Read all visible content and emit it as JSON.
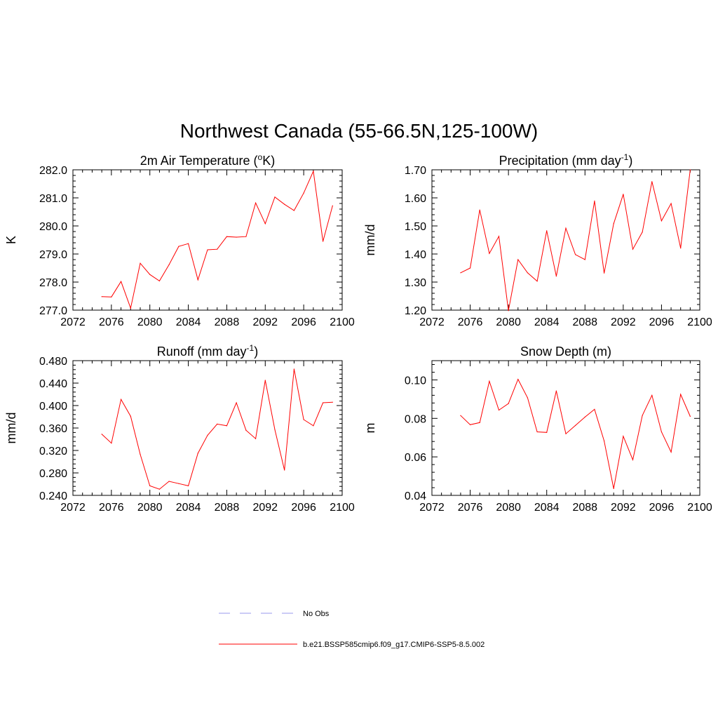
{
  "figure": {
    "title": "Northwest Canada (55-66.5N,125-100W)"
  },
  "legend": [
    {
      "label": "No Obs",
      "color": "#9999ee",
      "dash": "dashed"
    },
    {
      "label": "b.e21.BSSP585cmip6.f09_g17.CMIP6-SSP5-8.5.002",
      "color": "#ff0000",
      "dash": "solid"
    }
  ],
  "chart_data": [
    {
      "type": "line",
      "title": "2m Air Temperature (°K)",
      "title_parts": {
        "main": "2m Air Temperature (",
        "sup": "o",
        "end": "K)"
      },
      "ylabel": "K",
      "xlim": [
        2072,
        2100
      ],
      "ylim": [
        277.0,
        282.0
      ],
      "x_ticks": [
        "2072",
        "2076",
        "2080",
        "2084",
        "2088",
        "2092",
        "2096",
        "2100"
      ],
      "y_ticks": [
        "277.0",
        "278.0",
        "279.0",
        "280.0",
        "281.0",
        "282.0"
      ],
      "color": "#ff0000",
      "x": [
        2075,
        2076,
        2077,
        2078,
        2079,
        2080,
        2081,
        2082,
        2083,
        2084,
        2085,
        2086,
        2087,
        2088,
        2089,
        2090,
        2091,
        2092,
        2093,
        2094,
        2095,
        2096,
        2097,
        2098,
        2099
      ],
      "y": [
        277.48,
        277.47,
        278.02,
        277.07,
        278.67,
        278.27,
        278.04,
        278.62,
        279.27,
        279.37,
        278.08,
        279.15,
        279.17,
        279.62,
        279.6,
        279.62,
        280.82,
        280.08,
        281.03,
        280.77,
        280.55,
        281.17,
        281.95,
        279.45,
        280.72
      ]
    },
    {
      "type": "line",
      "title": "Precipitation (mm day-1)",
      "title_parts": {
        "main": "Precipitation (mm day",
        "sup": "-1",
        "end": ")"
      },
      "ylabel": "mm/d",
      "xlim": [
        2072,
        2100
      ],
      "ylim": [
        1.2,
        1.7
      ],
      "x_ticks": [
        "2072",
        "2076",
        "2080",
        "2084",
        "2088",
        "2092",
        "2096",
        "2100"
      ],
      "y_ticks": [
        "1.20",
        "1.30",
        "1.40",
        "1.50",
        "1.60",
        "1.70"
      ],
      "color": "#ff0000",
      "x": [
        2075,
        2076,
        2077,
        2078,
        2079,
        2080,
        2081,
        2082,
        2083,
        2084,
        2085,
        2086,
        2087,
        2088,
        2089,
        2090,
        2091,
        2092,
        2093,
        2094,
        2095,
        2096,
        2097,
        2098,
        2099
      ],
      "y": [
        1.333,
        1.35,
        1.557,
        1.402,
        1.463,
        1.198,
        1.38,
        1.333,
        1.303,
        1.483,
        1.321,
        1.492,
        1.398,
        1.38,
        1.589,
        1.332,
        1.508,
        1.613,
        1.417,
        1.478,
        1.658,
        1.518,
        1.58,
        1.421,
        1.7
      ]
    },
    {
      "type": "line",
      "title": "Runoff (mm day-1)",
      "title_parts": {
        "main": "Runoff (mm day",
        "sup": "-1",
        "end": ")"
      },
      "ylabel": "mm/d",
      "xlim": [
        2072,
        2100
      ],
      "ylim": [
        0.24,
        0.48
      ],
      "x_ticks": [
        "2072",
        "2076",
        "2080",
        "2084",
        "2088",
        "2092",
        "2096",
        "2100"
      ],
      "y_ticks": [
        "0.240",
        "0.280",
        "0.320",
        "0.360",
        "0.400",
        "0.440",
        "0.480"
      ],
      "color": "#ff0000",
      "x": [
        2075,
        2076,
        2077,
        2078,
        2079,
        2080,
        2081,
        2082,
        2083,
        2084,
        2085,
        2086,
        2087,
        2088,
        2089,
        2090,
        2091,
        2092,
        2093,
        2094,
        2095,
        2096,
        2097,
        2098,
        2099
      ],
      "y": [
        0.349,
        0.333,
        0.411,
        0.381,
        0.313,
        0.257,
        0.251,
        0.265,
        0.261,
        0.257,
        0.315,
        0.347,
        0.367,
        0.364,
        0.405,
        0.356,
        0.341,
        0.445,
        0.357,
        0.285,
        0.465,
        0.375,
        0.364,
        0.405,
        0.406
      ]
    },
    {
      "type": "line",
      "title": "Snow Depth (m)",
      "title_parts": {
        "main": "Snow Depth (m)",
        "sup": "",
        "end": ""
      },
      "ylabel": "m",
      "xlim": [
        2072,
        2100
      ],
      "ylim": [
        0.04,
        0.11
      ],
      "x_ticks": [
        "2072",
        "2076",
        "2080",
        "2084",
        "2088",
        "2092",
        "2096",
        "2100"
      ],
      "y_ticks": [
        "0.04",
        "0.06",
        "0.08",
        "0.10"
      ],
      "color": "#ff0000",
      "x": [
        2075,
        2076,
        2077,
        2078,
        2079,
        2080,
        2081,
        2082,
        2083,
        2084,
        2085,
        2086,
        2087,
        2088,
        2089,
        2090,
        2091,
        2092,
        2093,
        2094,
        2095,
        2096,
        2097,
        2098,
        2099
      ],
      "y": [
        0.0815,
        0.0767,
        0.0778,
        0.0993,
        0.0843,
        0.0877,
        0.1003,
        0.0907,
        0.073,
        0.0727,
        0.0943,
        0.072,
        0.0763,
        0.0807,
        0.0847,
        0.0683,
        0.0435,
        0.0707,
        0.0585,
        0.0815,
        0.092,
        0.073,
        0.0625,
        0.0925,
        0.081
      ]
    }
  ]
}
